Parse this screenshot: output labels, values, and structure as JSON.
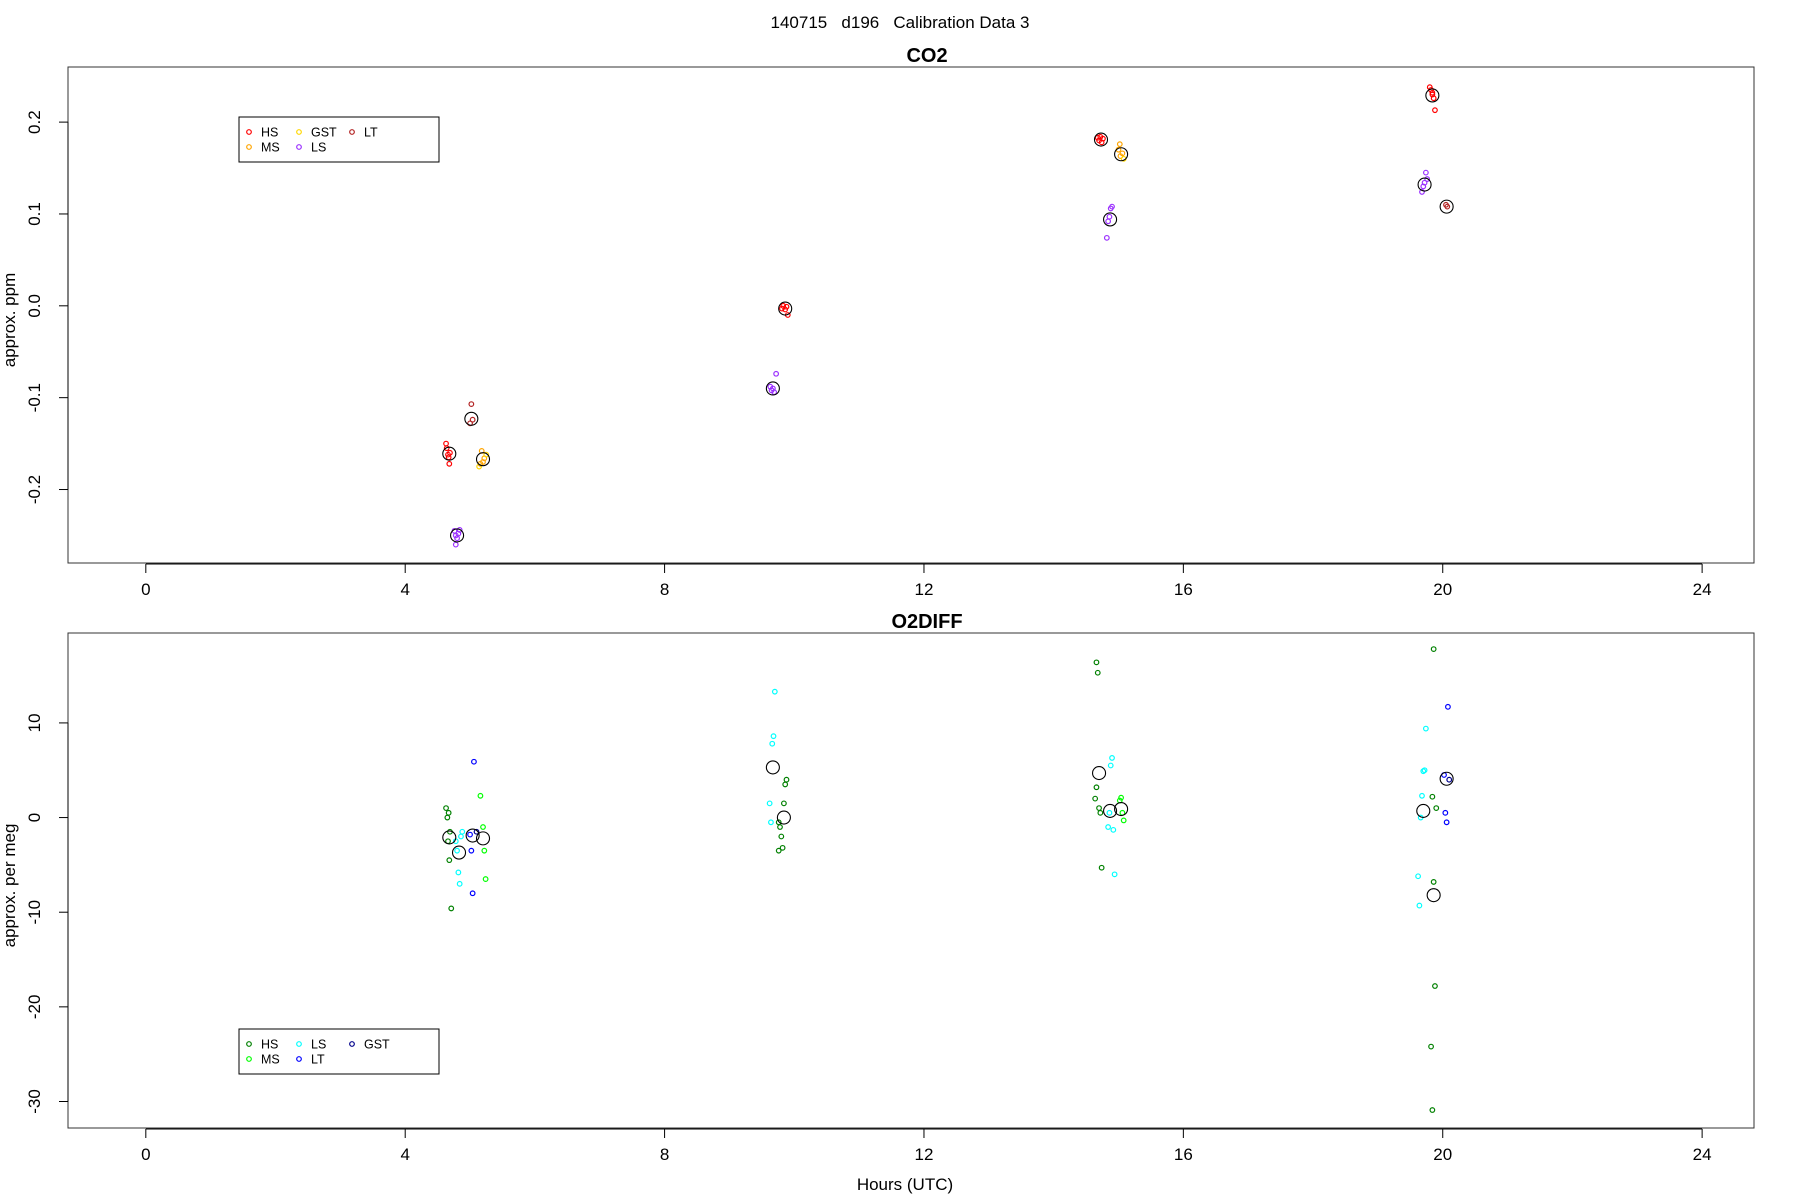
{
  "figure_title": "140715   d196   Calibration Data 3",
  "x_axis_label": "Hours (UTC)",
  "chart_data": [
    {
      "type": "scatter",
      "title": "CO2",
      "ylabel": "approx. ppm",
      "xlabel": "",
      "xlim": [
        -1.2,
        24.8
      ],
      "ylim": [
        -0.28,
        0.26
      ],
      "x_ticks": [
        "0",
        "4",
        "8",
        "12",
        "16",
        "20",
        "24"
      ],
      "x_tick_values": [
        0,
        4,
        8,
        12,
        16,
        20,
        24
      ],
      "y_ticks": [
        "-0.2",
        "-0.1",
        "0.0",
        "0.1",
        "0.2"
      ],
      "y_tick_values": [
        -0.2,
        -0.1,
        0.0,
        0.1,
        0.2
      ],
      "legend_position": "top-left",
      "series": [
        {
          "name": "HS",
          "color": "#ff0000",
          "points": [
            [
              4.63,
              -0.15
            ],
            [
              4.64,
              -0.155
            ],
            [
              4.66,
              -0.162
            ],
            [
              4.67,
              -0.165
            ],
            [
              4.68,
              -0.172
            ],
            [
              4.69,
              -0.16
            ],
            [
              14.68,
              0.183
            ],
            [
              14.7,
              0.18
            ],
            [
              14.72,
              0.184
            ],
            [
              14.74,
              0.178
            ],
            [
              14.76,
              0.182
            ],
            [
              19.8,
              0.238
            ],
            [
              19.82,
              0.235
            ],
            [
              19.84,
              0.23
            ],
            [
              19.86,
              0.226
            ],
            [
              19.88,
              0.213
            ],
            [
              19.84,
              0.232
            ],
            [
              9.83,
              0.0
            ],
            [
              9.86,
              -0.004
            ],
            [
              9.88,
              -0.001
            ],
            [
              9.9,
              -0.01
            ],
            [
              9.81,
              -0.003
            ]
          ]
        },
        {
          "name": "MS",
          "color": "#ffa500",
          "points": [
            [
              5.18,
              -0.158
            ],
            [
              5.2,
              -0.17
            ],
            [
              5.22,
              -0.166
            ],
            [
              5.16,
              -0.172
            ],
            [
              15.0,
              0.17
            ],
            [
              15.03,
              0.163
            ],
            [
              15.06,
              0.166
            ],
            [
              15.02,
              0.176
            ]
          ]
        },
        {
          "name": "GST",
          "color": "#ffd700",
          "points": [
            [
              5.14,
              -0.175
            ],
            [
              5.25,
              -0.162
            ],
            [
              15.08,
              0.16
            ]
          ]
        },
        {
          "name": "LS",
          "color": "#9b30ff",
          "points": [
            [
              4.76,
              -0.245
            ],
            [
              4.78,
              -0.25
            ],
            [
              4.8,
              -0.253
            ],
            [
              4.82,
              -0.248
            ],
            [
              4.78,
              -0.26
            ],
            [
              4.84,
              -0.244
            ],
            [
              9.63,
              -0.088
            ],
            [
              9.65,
              -0.092
            ],
            [
              9.67,
              -0.09
            ],
            [
              9.69,
              -0.094
            ],
            [
              9.72,
              -0.074
            ],
            [
              14.82,
              0.074
            ],
            [
              14.84,
              0.092
            ],
            [
              14.86,
              0.097
            ],
            [
              14.88,
              0.106
            ],
            [
              14.9,
              0.108
            ],
            [
              19.68,
              0.124
            ],
            [
              19.7,
              0.13
            ],
            [
              19.72,
              0.134
            ],
            [
              19.74,
              0.145
            ],
            [
              19.76,
              0.138
            ]
          ]
        },
        {
          "name": "LT",
          "color": "#b22222",
          "points": [
            [
              5.02,
              -0.107
            ],
            [
              5.04,
              -0.124
            ],
            [
              5.0,
              -0.128
            ],
            [
              20.05,
              0.11
            ],
            [
              20.07,
              0.108
            ]
          ]
        }
      ],
      "means": [
        [
          4.68,
          -0.161
        ],
        [
          4.8,
          -0.25
        ],
        [
          5.02,
          -0.123
        ],
        [
          5.2,
          -0.167
        ],
        [
          9.67,
          -0.09
        ],
        [
          9.86,
          -0.003
        ],
        [
          14.73,
          0.181
        ],
        [
          14.87,
          0.094
        ],
        [
          15.04,
          0.165
        ],
        [
          19.72,
          0.132
        ],
        [
          19.84,
          0.229
        ],
        [
          20.06,
          0.108
        ]
      ]
    },
    {
      "type": "scatter",
      "title": "O2DIFF",
      "ylabel": "approx. per meg",
      "xlabel": "Hours (UTC)",
      "xlim": [
        -1.2,
        24.8
      ],
      "ylim": [
        -32.8,
        19.5
      ],
      "x_ticks": [
        "0",
        "4",
        "8",
        "12",
        "16",
        "20",
        "24"
      ],
      "x_tick_values": [
        0,
        4,
        8,
        12,
        16,
        20,
        24
      ],
      "y_ticks": [
        "-30",
        "-20",
        "-10",
        "0",
        "10"
      ],
      "y_tick_values": [
        -30,
        -20,
        -10,
        0,
        10
      ],
      "legend_position": "bottom-left",
      "series": [
        {
          "name": "HS",
          "color": "#008000",
          "points": [
            [
              4.63,
              1.0
            ],
            [
              4.65,
              0.0
            ],
            [
              4.67,
              0.5
            ],
            [
              4.69,
              -1.5
            ],
            [
              4.66,
              -2.5
            ],
            [
              4.68,
              -4.5
            ],
            [
              4.71,
              -9.6
            ],
            [
              9.76,
              -0.5
            ],
            [
              9.78,
              -1.0
            ],
            [
              9.8,
              -2.0
            ],
            [
              9.82,
              -3.2
            ],
            [
              9.76,
              -3.5
            ],
            [
              9.84,
              1.5
            ],
            [
              9.86,
              3.5
            ],
            [
              9.88,
              4.0
            ],
            [
              14.66,
              16.4
            ],
            [
              14.68,
              15.3
            ],
            [
              14.64,
              2.0
            ],
            [
              14.66,
              3.2
            ],
            [
              14.7,
              1.0
            ],
            [
              14.72,
              0.5
            ],
            [
              14.74,
              -5.3
            ],
            [
              19.86,
              17.8
            ],
            [
              19.84,
              2.2
            ],
            [
              19.86,
              -6.8
            ],
            [
              19.88,
              -17.8
            ],
            [
              19.82,
              -24.2
            ],
            [
              19.84,
              -30.9
            ],
            [
              19.9,
              1.0
            ]
          ]
        },
        {
          "name": "MS",
          "color": "#00ff00",
          "points": [
            [
              5.16,
              2.3
            ],
            [
              5.2,
              -1.0
            ],
            [
              5.22,
              -3.5
            ],
            [
              5.24,
              -6.5
            ],
            [
              15.02,
              1.8
            ],
            [
              15.04,
              2.1
            ],
            [
              15.06,
              0.5
            ],
            [
              15.08,
              -0.3
            ]
          ]
        },
        {
          "name": "LS",
          "color": "#00ffff",
          "points": [
            [
              4.78,
              -2.5
            ],
            [
              4.8,
              -3.5
            ],
            [
              4.82,
              -5.8
            ],
            [
              4.84,
              -7.0
            ],
            [
              4.86,
              -2.0
            ],
            [
              4.88,
              -1.5
            ],
            [
              9.62,
              1.5
            ],
            [
              9.64,
              -0.5
            ],
            [
              9.66,
              7.8
            ],
            [
              9.68,
              8.6
            ],
            [
              9.7,
              13.3
            ],
            [
              14.84,
              -1.0
            ],
            [
              14.86,
              0.5
            ],
            [
              14.88,
              5.5
            ],
            [
              14.9,
              6.3
            ],
            [
              14.92,
              -1.3
            ],
            [
              14.94,
              -6.0
            ],
            [
              19.62,
              -6.2
            ],
            [
              19.64,
              -9.3
            ],
            [
              19.66,
              0.0
            ],
            [
              19.68,
              2.3
            ],
            [
              19.7,
              4.9
            ],
            [
              19.72,
              5.0
            ],
            [
              19.74,
              9.4
            ]
          ]
        },
        {
          "name": "LT",
          "color": "#0000ff",
          "points": [
            [
              5.0,
              -1.8
            ],
            [
              5.02,
              -3.5
            ],
            [
              5.04,
              -8.0
            ],
            [
              5.06,
              5.9
            ],
            [
              20.02,
              4.5
            ],
            [
              20.04,
              0.5
            ],
            [
              20.06,
              -0.5
            ],
            [
              20.08,
              11.7
            ]
          ]
        },
        {
          "name": "GST",
          "color": "#00008b",
          "points": [
            [
              5.1,
              -1.5
            ],
            [
              20.1,
              4.0
            ]
          ]
        }
      ],
      "means": [
        [
          4.68,
          -2.1
        ],
        [
          4.83,
          -3.7
        ],
        [
          5.04,
          -1.9
        ],
        [
          5.2,
          -2.2
        ],
        [
          9.67,
          5.3
        ],
        [
          9.84,
          0.0
        ],
        [
          14.7,
          4.7
        ],
        [
          14.87,
          0.7
        ],
        [
          15.04,
          0.9
        ],
        [
          19.7,
          0.7
        ],
        [
          19.86,
          -8.2
        ],
        [
          20.06,
          4.1
        ]
      ]
    }
  ]
}
